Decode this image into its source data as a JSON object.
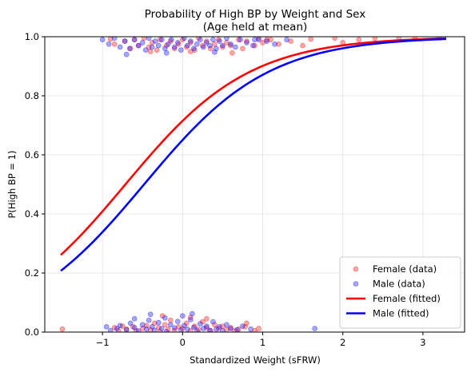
{
  "chart_data": {
    "type": "scatter",
    "title": "Probability of High BP by Weight and Sex",
    "subtitle": "(Age held at mean)",
    "xlabel": "Standardized Weight (sFRW)",
    "ylabel": "P(High BP = 1)",
    "xlim": [
      -1.72,
      3.52
    ],
    "ylim": [
      0.0,
      1.0
    ],
    "xticks": [
      -1,
      0,
      1,
      2,
      3
    ],
    "xtick_labels": [
      "−1",
      "0",
      "1",
      "2",
      "3"
    ],
    "yticks": [
      0.0,
      0.2,
      0.4,
      0.6,
      0.8,
      1.0
    ],
    "ytick_labels": [
      "0.0",
      "0.2",
      "0.4",
      "0.6",
      "0.8",
      "1.0"
    ],
    "grid": true,
    "legend_position": "lower-right",
    "series": [
      {
        "name": "Female (data)",
        "kind": "scatter",
        "color": "#ff0000",
        "points": [
          [
            -1.5,
            0.01
          ],
          [
            -0.85,
            0.015
          ],
          [
            -0.8,
            0.005
          ],
          [
            -0.75,
            0.02
          ],
          [
            -0.7,
            0.01
          ],
          [
            -0.62,
            0.018
          ],
          [
            -0.58,
            0.004
          ],
          [
            -0.5,
            0.012
          ],
          [
            -0.45,
            0.022
          ],
          [
            -0.4,
            0.008
          ],
          [
            -0.35,
            0.03
          ],
          [
            -0.3,
            0.015
          ],
          [
            -0.28,
            0.002
          ],
          [
            -0.22,
            0.025
          ],
          [
            -0.18,
            0.01
          ],
          [
            -0.15,
            0.04
          ],
          [
            -0.1,
            0.006
          ],
          [
            -0.05,
            0.018
          ],
          [
            0.0,
            0.012
          ],
          [
            0.05,
            0.03
          ],
          [
            0.1,
            0.004
          ],
          [
            0.15,
            0.02
          ],
          [
            0.2,
            0.009
          ],
          [
            0.25,
            0.035
          ],
          [
            0.3,
            0.015
          ],
          [
            0.35,
            0.005
          ],
          [
            0.4,
            0.025
          ],
          [
            0.45,
            0.012
          ],
          [
            0.5,
            0.02
          ],
          [
            0.55,
            0.008
          ],
          [
            0.6,
            0.015
          ],
          [
            0.65,
            0.004
          ],
          [
            0.7,
            0.01
          ],
          [
            0.78,
            0.018
          ],
          [
            0.8,
            0.03
          ],
          [
            0.9,
            0.005
          ],
          [
            0.95,
            0.012
          ],
          [
            -0.25,
            0.055
          ],
          [
            0.3,
            0.045
          ],
          [
            0.1,
            0.05
          ],
          [
            -0.9,
            0.992
          ],
          [
            -0.85,
            0.975
          ],
          [
            -0.72,
            0.985
          ],
          [
            -0.65,
            0.96
          ],
          [
            -0.6,
            0.99
          ],
          [
            -0.55,
            0.97
          ],
          [
            -0.48,
            0.995
          ],
          [
            -0.42,
            0.965
          ],
          [
            -0.38,
            0.98
          ],
          [
            -0.32,
            0.955
          ],
          [
            -0.28,
            0.99
          ],
          [
            -0.2,
            0.97
          ],
          [
            -0.15,
            0.985
          ],
          [
            -0.1,
            0.96
          ],
          [
            -0.05,
            0.975
          ],
          [
            0.0,
            0.99
          ],
          [
            0.05,
            0.965
          ],
          [
            0.1,
            0.98
          ],
          [
            0.15,
            0.955
          ],
          [
            0.2,
            0.995
          ],
          [
            0.25,
            0.97
          ],
          [
            0.3,
            0.985
          ],
          [
            0.35,
            0.96
          ],
          [
            0.4,
            0.975
          ],
          [
            0.45,
            0.99
          ],
          [
            0.5,
            0.965
          ],
          [
            0.55,
            0.98
          ],
          [
            0.6,
            0.97
          ],
          [
            0.7,
            0.99
          ],
          [
            0.75,
            0.96
          ],
          [
            0.8,
            0.985
          ],
          [
            0.9,
            0.97
          ],
          [
            0.95,
            0.995
          ],
          [
            1.0,
            0.98
          ],
          [
            1.1,
            0.99
          ],
          [
            1.2,
            0.975
          ],
          [
            1.35,
            0.985
          ],
          [
            1.5,
            0.97
          ],
          [
            1.6,
            0.992
          ],
          [
            1.9,
            0.995
          ],
          [
            2.0,
            0.98
          ],
          [
            2.2,
            0.99
          ],
          [
            2.4,
            0.995
          ],
          [
            2.7,
            0.995
          ],
          [
            2.9,
            0.998
          ],
          [
            3.2,
            0.998
          ],
          [
            0.62,
            0.945
          ],
          [
            -0.4,
            0.95
          ],
          [
            0.1,
            0.95
          ],
          [
            1.05,
            0.99
          ]
        ]
      },
      {
        "name": "Male (data)",
        "kind": "scatter",
        "color": "#0000ff",
        "points": [
          [
            -0.95,
            0.018
          ],
          [
            -0.9,
            0.005
          ],
          [
            -0.82,
            0.012
          ],
          [
            -0.78,
            0.022
          ],
          [
            -0.7,
            0.008
          ],
          [
            -0.65,
            0.03
          ],
          [
            -0.6,
            0.015
          ],
          [
            -0.55,
            0.004
          ],
          [
            -0.5,
            0.025
          ],
          [
            -0.45,
            0.01
          ],
          [
            -0.42,
            0.04
          ],
          [
            -0.38,
            0.018
          ],
          [
            -0.35,
            0.006
          ],
          [
            -0.3,
            0.032
          ],
          [
            -0.26,
            0.012
          ],
          [
            -0.22,
            0.048
          ],
          [
            -0.2,
            0.002
          ],
          [
            -0.15,
            0.025
          ],
          [
            -0.1,
            0.014
          ],
          [
            -0.06,
            0.036
          ],
          [
            -0.02,
            0.007
          ],
          [
            0.02,
            0.022
          ],
          [
            0.06,
            0.01
          ],
          [
            0.1,
            0.042
          ],
          [
            0.14,
            0.016
          ],
          [
            0.18,
            0.004
          ],
          [
            0.22,
            0.028
          ],
          [
            0.26,
            0.012
          ],
          [
            0.3,
            0.02
          ],
          [
            0.34,
            0.006
          ],
          [
            0.38,
            0.035
          ],
          [
            0.42,
            0.01
          ],
          [
            0.46,
            0.018
          ],
          [
            0.5,
            0.004
          ],
          [
            0.55,
            0.025
          ],
          [
            0.6,
            0.012
          ],
          [
            0.68,
            0.008
          ],
          [
            0.75,
            0.02
          ],
          [
            0.85,
            0.01
          ],
          [
            1.65,
            0.012
          ],
          [
            -0.4,
            0.06
          ],
          [
            0.12,
            0.062
          ],
          [
            -0.6,
            0.045
          ],
          [
            0.0,
            0.055
          ],
          [
            -1.0,
            0.99
          ],
          [
            -0.92,
            0.975
          ],
          [
            -0.85,
            0.995
          ],
          [
            -0.78,
            0.965
          ],
          [
            -0.72,
            0.985
          ],
          [
            -0.66,
            0.96
          ],
          [
            -0.6,
            0.99
          ],
          [
            -0.55,
            0.97
          ],
          [
            -0.5,
            0.98
          ],
          [
            -0.46,
            0.955
          ],
          [
            -0.42,
            0.995
          ],
          [
            -0.38,
            0.965
          ],
          [
            -0.34,
            0.985
          ],
          [
            -0.3,
            0.97
          ],
          [
            -0.26,
            0.99
          ],
          [
            -0.22,
            0.96
          ],
          [
            -0.18,
            0.975
          ],
          [
            -0.14,
            0.99
          ],
          [
            -0.1,
            0.965
          ],
          [
            -0.06,
            0.98
          ],
          [
            -0.02,
            0.955
          ],
          [
            0.02,
            0.995
          ],
          [
            0.06,
            0.97
          ],
          [
            0.1,
            0.985
          ],
          [
            0.14,
            0.96
          ],
          [
            0.18,
            0.975
          ],
          [
            0.22,
            0.99
          ],
          [
            0.26,
            0.965
          ],
          [
            0.3,
            0.98
          ],
          [
            0.34,
            0.97
          ],
          [
            0.38,
            0.99
          ],
          [
            0.42,
            0.96
          ],
          [
            0.46,
            0.985
          ],
          [
            0.5,
            0.97
          ],
          [
            0.55,
            0.995
          ],
          [
            0.6,
            0.975
          ],
          [
            0.66,
            0.965
          ],
          [
            0.72,
            0.99
          ],
          [
            0.8,
            0.98
          ],
          [
            0.88,
            0.97
          ],
          [
            0.95,
            0.99
          ],
          [
            1.05,
            0.985
          ],
          [
            1.15,
            0.975
          ],
          [
            1.3,
            0.99
          ],
          [
            -0.7,
            0.94
          ],
          [
            -0.2,
            0.945
          ],
          [
            0.4,
            0.948
          ],
          [
            0.9,
            0.99
          ]
        ]
      },
      {
        "name": "Female (fitted)",
        "kind": "line",
        "color": "#ff0000",
        "intercept": 0.92,
        "slope": 1.29,
        "x_range": [
          -1.52,
          3.29
        ]
      },
      {
        "name": "Male (fitted)",
        "kind": "line",
        "color": "#0000ff",
        "intercept": 0.62,
        "slope": 1.29,
        "x_range": [
          -1.52,
          3.29
        ]
      }
    ]
  }
}
